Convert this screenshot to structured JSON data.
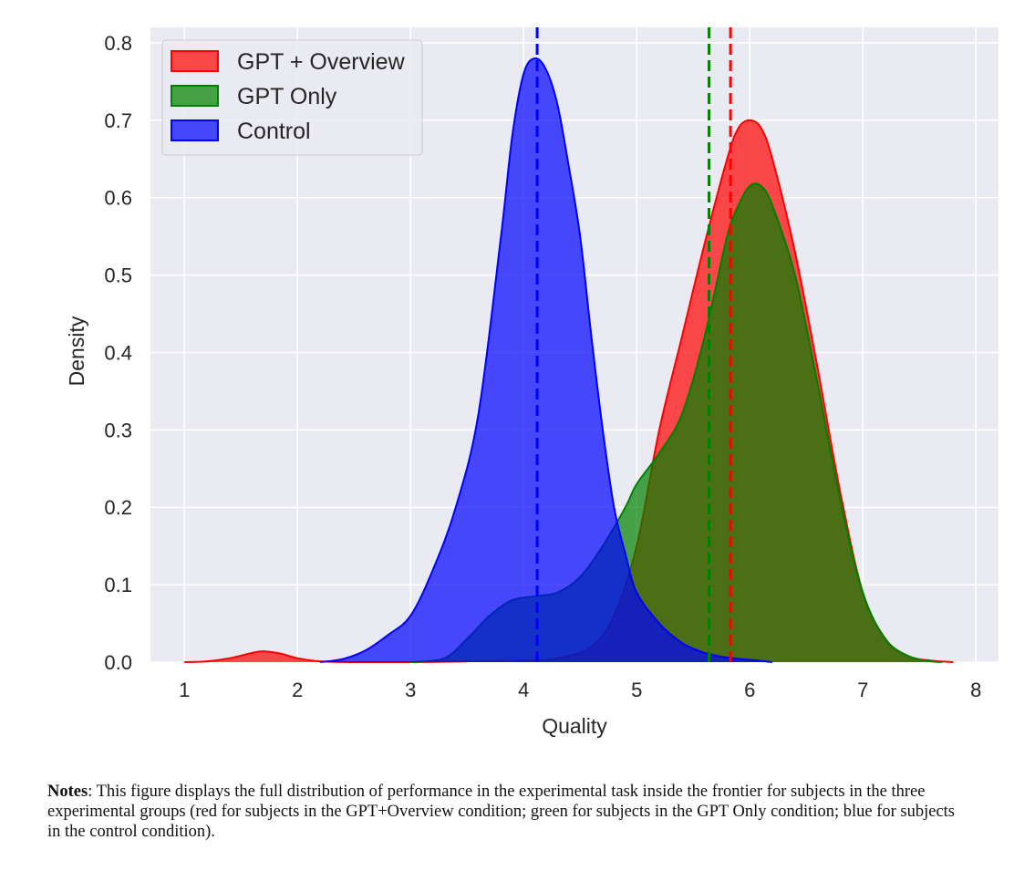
{
  "chart_data": {
    "type": "area",
    "title": "",
    "xlabel": "Quality",
    "ylabel": "Density",
    "xlim": [
      0.7,
      8.2
    ],
    "ylim": [
      0,
      0.82
    ],
    "xticks": [
      "1",
      "2",
      "3",
      "4",
      "5",
      "6",
      "7",
      "8"
    ],
    "yticks": [
      "0.0",
      "0.1",
      "0.2",
      "0.3",
      "0.4",
      "0.5",
      "0.6",
      "0.7",
      "0.8"
    ],
    "grid": true,
    "legend_position": "top-left",
    "series": [
      {
        "name": "GPT + Overview",
        "color": "#ff0000",
        "mean": 5.83,
        "points": [
          [
            1.0,
            0.0
          ],
          [
            1.2,
            0.001
          ],
          [
            1.4,
            0.005
          ],
          [
            1.6,
            0.012
          ],
          [
            1.7,
            0.014
          ],
          [
            1.85,
            0.011
          ],
          [
            2.0,
            0.005
          ],
          [
            2.2,
            0.001
          ],
          [
            2.5,
            0.0
          ],
          [
            3.0,
            0.0
          ],
          [
            3.5,
            0.001
          ],
          [
            4.0,
            0.002
          ],
          [
            4.3,
            0.005
          ],
          [
            4.6,
            0.02
          ],
          [
            4.8,
            0.06
          ],
          [
            5.0,
            0.15
          ],
          [
            5.2,
            0.3
          ],
          [
            5.4,
            0.42
          ],
          [
            5.6,
            0.54
          ],
          [
            5.8,
            0.65
          ],
          [
            5.9,
            0.69
          ],
          [
            6.0,
            0.7
          ],
          [
            6.1,
            0.69
          ],
          [
            6.2,
            0.65
          ],
          [
            6.4,
            0.53
          ],
          [
            6.6,
            0.38
          ],
          [
            6.8,
            0.22
          ],
          [
            7.0,
            0.09
          ],
          [
            7.2,
            0.03
          ],
          [
            7.4,
            0.008
          ],
          [
            7.6,
            0.002
          ],
          [
            7.8,
            0.0
          ]
        ]
      },
      {
        "name": "GPT Only",
        "color": "#008000",
        "mean": 5.64,
        "points": [
          [
            3.0,
            0.0
          ],
          [
            3.3,
            0.005
          ],
          [
            3.5,
            0.03
          ],
          [
            3.7,
            0.06
          ],
          [
            3.9,
            0.08
          ],
          [
            4.1,
            0.085
          ],
          [
            4.3,
            0.09
          ],
          [
            4.5,
            0.11
          ],
          [
            4.7,
            0.15
          ],
          [
            4.9,
            0.2
          ],
          [
            5.0,
            0.23
          ],
          [
            5.2,
            0.27
          ],
          [
            5.4,
            0.32
          ],
          [
            5.6,
            0.42
          ],
          [
            5.8,
            0.55
          ],
          [
            5.9,
            0.59
          ],
          [
            6.0,
            0.615
          ],
          [
            6.1,
            0.615
          ],
          [
            6.2,
            0.59
          ],
          [
            6.4,
            0.5
          ],
          [
            6.6,
            0.36
          ],
          [
            6.8,
            0.21
          ],
          [
            7.0,
            0.09
          ],
          [
            7.2,
            0.03
          ],
          [
            7.4,
            0.008
          ],
          [
            7.6,
            0.001
          ],
          [
            7.7,
            0.0
          ]
        ]
      },
      {
        "name": "Control",
        "color": "#0000ff",
        "mean": 4.12,
        "points": [
          [
            2.2,
            0.0
          ],
          [
            2.4,
            0.004
          ],
          [
            2.6,
            0.015
          ],
          [
            2.8,
            0.035
          ],
          [
            3.0,
            0.06
          ],
          [
            3.2,
            0.12
          ],
          [
            3.4,
            0.2
          ],
          [
            3.6,
            0.32
          ],
          [
            3.8,
            0.55
          ],
          [
            3.9,
            0.68
          ],
          [
            4.0,
            0.76
          ],
          [
            4.1,
            0.78
          ],
          [
            4.2,
            0.765
          ],
          [
            4.3,
            0.72
          ],
          [
            4.4,
            0.64
          ],
          [
            4.5,
            0.55
          ],
          [
            4.6,
            0.42
          ],
          [
            4.7,
            0.3
          ],
          [
            4.8,
            0.2
          ],
          [
            4.9,
            0.14
          ],
          [
            5.0,
            0.09
          ],
          [
            5.2,
            0.05
          ],
          [
            5.4,
            0.025
          ],
          [
            5.6,
            0.012
          ],
          [
            5.8,
            0.006
          ],
          [
            6.0,
            0.003
          ],
          [
            6.2,
            0.0
          ]
        ]
      }
    ]
  },
  "notes": {
    "label": "Notes",
    "text": ": This figure displays the full distribution of performance in the experimental task inside the frontier for subjects in the three experimental groups (red for subjects in the GPT+Overview condition; green for subjects in the GPT Only condition; blue for subjects in the control condition)."
  }
}
